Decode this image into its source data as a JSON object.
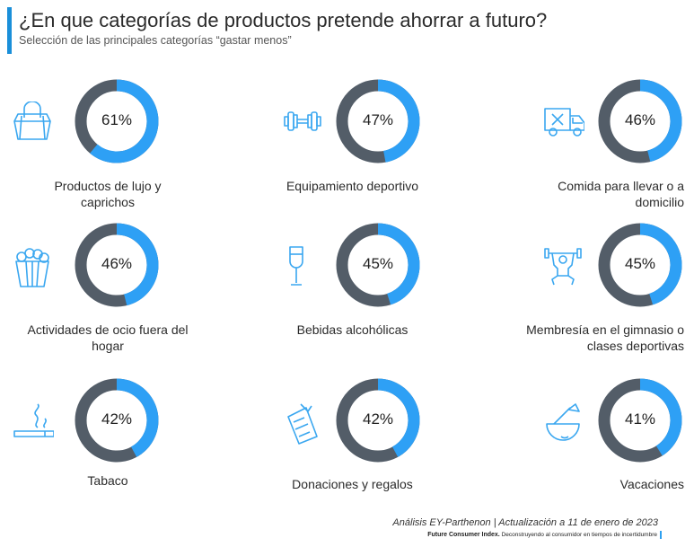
{
  "header": {
    "title": "¿En que categorías de productos pretende ahorrar a futuro?",
    "subtitle": "Selección de las principales categorías “gastar menos”"
  },
  "colors": {
    "accent": "#1a8fd9",
    "value": "#2ea0f5",
    "remainder": "#535d68",
    "icon": "#3aa7f0"
  },
  "chart_data": {
    "type": "pie",
    "variant": "donut-grid",
    "unit": "%",
    "items": [
      {
        "label": "Productos de lujo y caprichos",
        "value": 61,
        "display": "61%",
        "icon": "shopping-bag-icon"
      },
      {
        "label": "Equipamiento deportivo",
        "value": 47,
        "display": "47%",
        "icon": "dumbbell-icon"
      },
      {
        "label": "Comida para llevar o a domicilio",
        "value": 46,
        "display": "46%",
        "icon": "delivery-truck-icon"
      },
      {
        "label": "Actividades de ocio fuera del hogar",
        "value": 46,
        "display": "46%",
        "icon": "popcorn-icon"
      },
      {
        "label": "Bebidas alcohólicas",
        "value": 45,
        "display": "45%",
        "icon": "champagne-glass-icon"
      },
      {
        "label": "Membresía en el gimnasio o clases deportivas",
        "value": 45,
        "display": "45%",
        "icon": "weightlifter-icon"
      },
      {
        "label": "Tabaco",
        "value": 42,
        "display": "42%",
        "icon": "cigarette-icon"
      },
      {
        "label": "Donaciones y regalos",
        "value": 42,
        "display": "42%",
        "icon": "gift-icon"
      },
      {
        "label": "Vacaciones",
        "value": 41,
        "display": "41%",
        "icon": "coconut-drink-icon"
      }
    ]
  },
  "footer": {
    "credit": "Análisis EY-Parthenon | Actualización a 11 de enero de 2023",
    "brand": "Future Consumer Index.",
    "tagline": "Deconstruyendo al consumidor en tiempos de incertidumbre"
  }
}
